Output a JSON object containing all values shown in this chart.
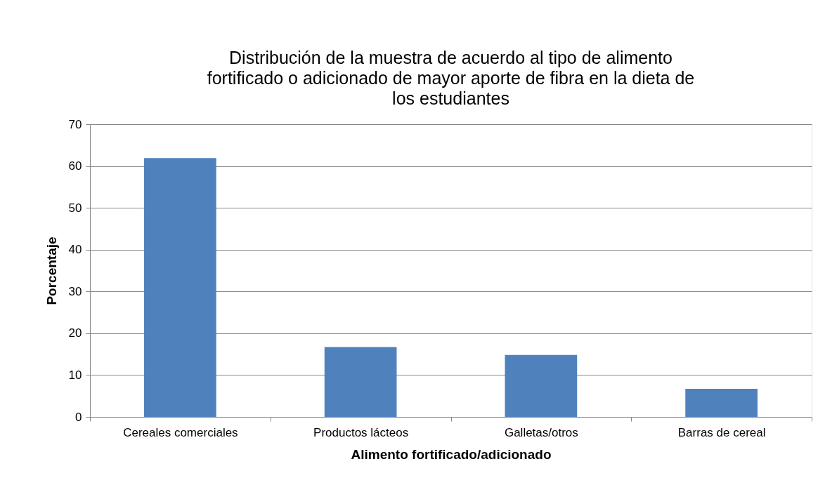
{
  "chart_data": {
    "type": "bar",
    "title": "Distribución de la muestra de acuerdo al tipo de alimento fortificado o adicionado de mayor aporte de fibra en la dieta de los estudiantes",
    "xlabel": "Alimento fortificado/adicionado",
    "ylabel": "Porcentaje",
    "categories": [
      "Cereales comerciales",
      "Productos lácteos",
      "Galletas/otros",
      "Barras de cereal"
    ],
    "values": [
      61.9,
      16.7,
      14.8,
      6.7
    ],
    "color": "#4f81bd",
    "ylim": [
      0,
      70
    ],
    "yticks": [
      0,
      10,
      20,
      30,
      40,
      50,
      60,
      70
    ],
    "grid": "y"
  }
}
